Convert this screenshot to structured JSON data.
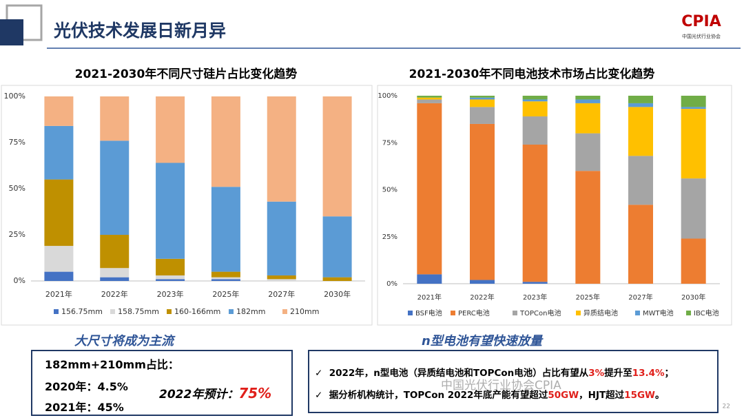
{
  "header": {
    "title": "光伏技术发展日新月异",
    "logo": "CPIA",
    "logo_subtitle": "中国光伏行业协会"
  },
  "chart_data": [
    {
      "type": "stacked-bar",
      "title": "2021-2030年不同尺寸硅片占比变化趋势",
      "categories": [
        "2021年",
        "2022年",
        "2023年",
        "2025年",
        "2027年",
        "2030年"
      ],
      "series": [
        {
          "name": "156.75mm",
          "color": "#4472c4",
          "values": [
            5,
            2,
            1,
            1,
            0,
            0
          ]
        },
        {
          "name": "158.75mm",
          "color": "#d9d9d9",
          "values": [
            14,
            5,
            2,
            1,
            1,
            0
          ]
        },
        {
          "name": "160-166mm",
          "color": "#bf9000",
          "values": [
            36,
            18,
            9,
            3,
            2,
            2
          ]
        },
        {
          "name": "182mm",
          "color": "#5b9bd5",
          "values": [
            29,
            51,
            52,
            46,
            40,
            33
          ]
        },
        {
          "name": "210mm",
          "color": "#f4b183",
          "values": [
            16,
            24,
            36,
            49,
            57,
            65
          ]
        }
      ],
      "ylim": [
        0,
        100
      ],
      "yticks": [
        {
          "value": 0,
          "label": "0%"
        },
        {
          "value": 25,
          "label": "25%"
        },
        {
          "value": 50,
          "label": "50%"
        },
        {
          "value": 75,
          "label": "75%"
        },
        {
          "value": 100,
          "label": "100%"
        }
      ],
      "legend": "bottom"
    },
    {
      "type": "stacked-bar",
      "title": "2021-2030年不同电池技术市场占比变化趋势",
      "categories": [
        "2021年",
        "2022年",
        "2023年",
        "2025年",
        "2027年",
        "2030年"
      ],
      "series": [
        {
          "name": "BSF电池",
          "color": "#4472c4",
          "values": [
            5,
            2,
            1,
            0,
            0,
            0
          ]
        },
        {
          "name": "PERC电池",
          "color": "#ed7d31",
          "values": [
            91,
            83,
            73,
            60,
            42,
            24
          ]
        },
        {
          "name": "TOPCon电池",
          "color": "#a5a5a5",
          "values": [
            2,
            9,
            15,
            20,
            26,
            32
          ]
        },
        {
          "name": "异质结电池",
          "color": "#ffc000",
          "values": [
            1,
            4,
            8,
            16,
            26,
            37
          ]
        },
        {
          "name": "MWT电池",
          "color": "#5b9bd5",
          "values": [
            0,
            1,
            1,
            2,
            2,
            1
          ]
        },
        {
          "name": "IBC电池",
          "color": "#70ad47",
          "values": [
            1,
            1,
            2,
            2,
            4,
            6
          ]
        }
      ],
      "ylim": [
        0,
        100
      ],
      "yticks": [
        {
          "value": 0,
          "label": "0%"
        },
        {
          "value": 25,
          "label": "25%"
        },
        {
          "value": 50,
          "label": "50%"
        },
        {
          "value": 75,
          "label": "75%"
        },
        {
          "value": 100,
          "label": "100%"
        }
      ],
      "legend": "bottom"
    }
  ],
  "left_note": {
    "heading": "大尺寸将成为主流",
    "lines": [
      "182mm+210mm占比：",
      "2020年：4.5%",
      "2021年：45%"
    ],
    "forecast_label": "2022年预计：",
    "forecast_value": "75%"
  },
  "right_note": {
    "heading": "n型电池有望快速放量",
    "bullet_1": [
      "2022年，n型电池（异质结电池和TOPCon电池）占比有望从",
      "3%",
      "提升至",
      "13.4%",
      "；"
    ],
    "bullet_2": [
      "据分析机构统计，TOPCon 2022年底产能有望超过",
      "50GW",
      "，HJT超过",
      "15GW",
      "。"
    ]
  },
  "watermark": "中国光伏行业协会CPIA",
  "page_number": "22"
}
